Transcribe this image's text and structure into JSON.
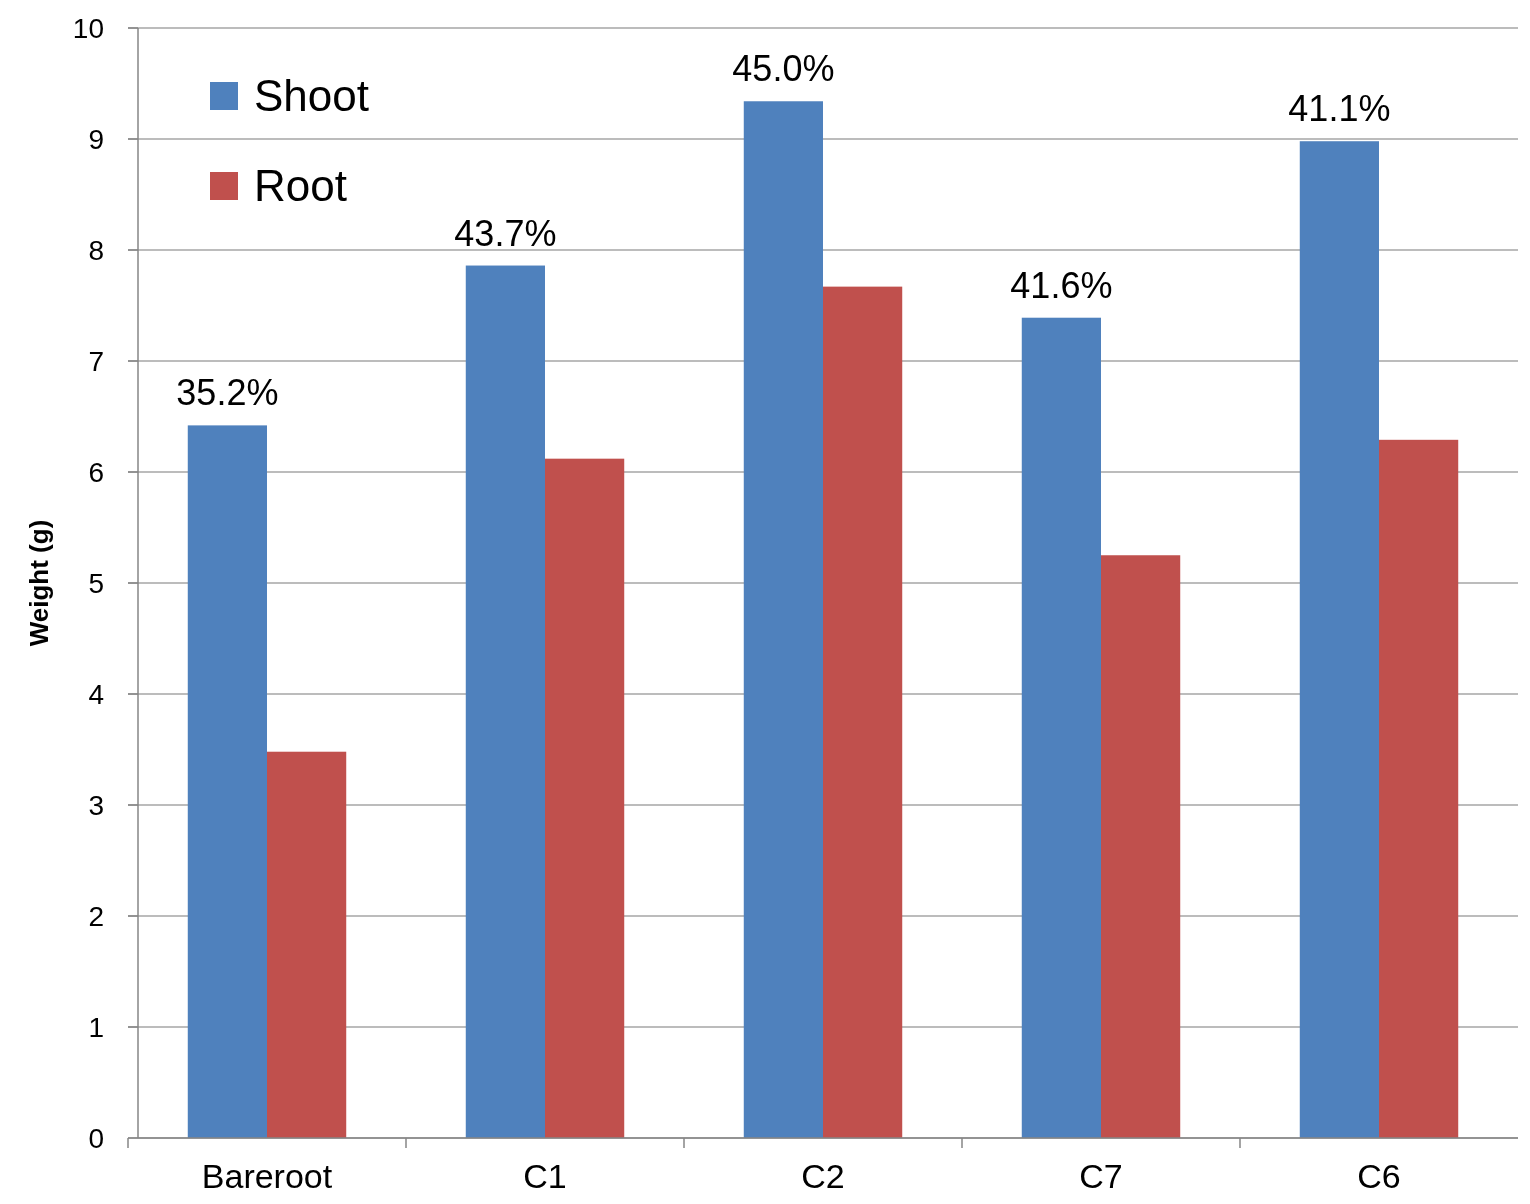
{
  "chart_data": {
    "type": "bar",
    "ylabel": "Weight  (g)",
    "categories": [
      "Bareroot",
      "C1",
      "C2",
      "C7",
      "C6"
    ],
    "series": [
      {
        "name": "Shoot",
        "color": "#4f81bd",
        "values": [
          6.42,
          7.86,
          9.34,
          7.39,
          8.98
        ]
      },
      {
        "name": "Root",
        "color": "#c0504d",
        "values": [
          3.48,
          6.12,
          7.67,
          5.25,
          6.29
        ]
      }
    ],
    "ylim": [
      0,
      10
    ],
    "yticks": [
      0,
      1,
      2,
      3,
      4,
      5,
      6,
      7,
      8,
      9,
      10
    ],
    "grid": "y",
    "legend": "top left",
    "annotations": [
      {
        "text": "35.2%",
        "x": "Bareroot",
        "y": 6.42
      },
      {
        "text": "43.7%",
        "x": "C1",
        "y": 7.86
      },
      {
        "text": "45.0%",
        "x": "C2",
        "y": 9.34
      },
      {
        "text": "41.6%",
        "x": "C7",
        "y": 7.39
      },
      {
        "text": "41.1%",
        "x": "C6",
        "y": 8.98
      }
    ]
  }
}
